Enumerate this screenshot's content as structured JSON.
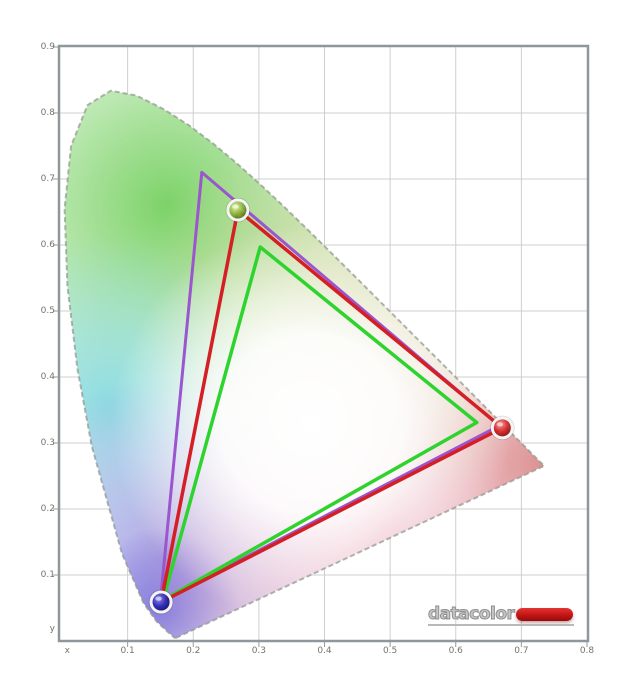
{
  "logo": {
    "text": "datacolor",
    "swoosh_color": "#c51414"
  },
  "axis": {
    "x_letter": "x",
    "y_letter": "y",
    "x_ticks": [
      {
        "label": "x",
        "value": 0.008
      },
      {
        "label": "0.1",
        "value": 0.1
      },
      {
        "label": "0.2",
        "value": 0.2
      },
      {
        "label": "0.3",
        "value": 0.3
      },
      {
        "label": "0.4",
        "value": 0.4
      },
      {
        "label": "0.5",
        "value": 0.5
      },
      {
        "label": "0.6",
        "value": 0.6
      },
      {
        "label": "0.7",
        "value": 0.7
      },
      {
        "label": "0.8",
        "value": 0.8
      }
    ],
    "y_ticks": [
      {
        "label": "0.9",
        "value": 0.9
      },
      {
        "label": "0.8",
        "value": 0.8
      },
      {
        "label": "0.7",
        "value": 0.7
      },
      {
        "label": "0.6",
        "value": 0.6
      },
      {
        "label": "0.5",
        "value": 0.5
      },
      {
        "label": "0.4",
        "value": 0.4
      },
      {
        "label": "0.3",
        "value": 0.3
      },
      {
        "label": "0.2",
        "value": 0.2
      },
      {
        "label": "0.1",
        "value": 0.1
      },
      {
        "label": "y",
        "value": 0.018
      }
    ]
  },
  "chart_data": {
    "type": "line",
    "subtype": "cie-1931-chromaticity-gamut",
    "xlabel": "x",
    "ylabel": "y",
    "xlim": [
      0,
      0.8
    ],
    "ylim": [
      0,
      0.9
    ],
    "grid": true,
    "grid_step": 0.1,
    "frame_color": "#8e989a",
    "grid_color": "#cfcfcf",
    "tick_color": "#999999",
    "label_color": "#75756c",
    "series": [
      {
        "name": "reference-gamut-wide",
        "color": "#9b55cf",
        "width": 3,
        "vertices": [
          [
            0.213,
            0.71
          ],
          [
            0.666,
            0.326
          ],
          [
            0.15,
            0.06
          ]
        ]
      },
      {
        "name": "reference-gamut-srgb",
        "color": "#2ed32e",
        "width": 3.5,
        "vertices": [
          [
            0.302,
            0.597
          ],
          [
            0.632,
            0.331
          ],
          [
            0.154,
            0.062
          ]
        ]
      },
      {
        "name": "measured-gamut",
        "color": "#d41f24",
        "width": 3.5,
        "vertices": [
          [
            0.268,
            0.653
          ],
          [
            0.671,
            0.323
          ],
          [
            0.151,
            0.059
          ]
        ]
      }
    ],
    "markers": [
      {
        "name": "green-primary",
        "x": 0.268,
        "y": 0.653,
        "r": 8.5,
        "stops": [
          "#eaf6b2",
          "#8aba3c",
          "#4f7019"
        ]
      },
      {
        "name": "red-primary",
        "x": 0.671,
        "y": 0.323,
        "r": 8.5,
        "stops": [
          "#f6a2a2",
          "#d42525",
          "#7c0e0e"
        ]
      },
      {
        "name": "blue-primary",
        "x": 0.151,
        "y": 0.059,
        "r": 8.5,
        "stops": [
          "#9090f2",
          "#2c2cba",
          "#0f0f5e"
        ]
      }
    ],
    "locus_edge_color": "#8d978d",
    "locus_shading": [
      {
        "id": "sh-green",
        "cx": 0.16,
        "cy": 0.66,
        "r": 250,
        "color": "#72cf5c",
        "opacity": 1
      },
      {
        "id": "sh-cyan",
        "cx": 0.07,
        "cy": 0.36,
        "r": 170,
        "color": "#7fd8df",
        "opacity": 0.95
      },
      {
        "id": "sh-lav",
        "cx": 0.16,
        "cy": 0.12,
        "r": 185,
        "color": "#9e97e2",
        "opacity": 0.95
      },
      {
        "id": "sh-blue",
        "cx": 0.15,
        "cy": 0.05,
        "r": 80,
        "color": "#6d63d8",
        "opacity": 0.85
      },
      {
        "id": "sh-pink",
        "cx": 0.5,
        "cy": 0.16,
        "r": 260,
        "color": "#e8a0b4",
        "opacity": 0.9
      },
      {
        "id": "sh-red",
        "cx": 0.73,
        "cy": 0.27,
        "r": 130,
        "color": "#d98585",
        "opacity": 0.95
      },
      {
        "id": "sh-khaki",
        "cx": 0.44,
        "cy": 0.5,
        "r": 210,
        "color": "#cccf8e",
        "opacity": 0.8
      },
      {
        "id": "sh-white",
        "cx": 0.38,
        "cy": 0.33,
        "r": 200,
        "color": "#ffffff",
        "opacity": 1,
        "core": 0.45
      }
    ],
    "spectral_locus": [
      [
        0.1741,
        0.005
      ],
      [
        0.1714,
        0.0051
      ],
      [
        0.1689,
        0.0069
      ],
      [
        0.1644,
        0.0109
      ],
      [
        0.1566,
        0.0177
      ],
      [
        0.144,
        0.0297
      ],
      [
        0.1241,
        0.0578
      ],
      [
        0.0913,
        0.1327
      ],
      [
        0.0454,
        0.295
      ],
      [
        0.0235,
        0.4127
      ],
      [
        0.0082,
        0.5384
      ],
      [
        0.0039,
        0.6548
      ],
      [
        0.0139,
        0.7502
      ],
      [
        0.0389,
        0.812
      ],
      [
        0.0743,
        0.8338
      ],
      [
        0.1142,
        0.8262
      ],
      [
        0.1547,
        0.8059
      ],
      [
        0.1929,
        0.7816
      ],
      [
        0.2296,
        0.7543
      ],
      [
        0.2658,
        0.7243
      ],
      [
        0.3016,
        0.6923
      ],
      [
        0.3373,
        0.6589
      ],
      [
        0.3731,
        0.6245
      ],
      [
        0.4087,
        0.5896
      ],
      [
        0.4441,
        0.5547
      ],
      [
        0.4788,
        0.5202
      ],
      [
        0.5125,
        0.4866
      ],
      [
        0.5448,
        0.4544
      ],
      [
        0.5752,
        0.4242
      ],
      [
        0.6029,
        0.3965
      ],
      [
        0.627,
        0.3725
      ],
      [
        0.6482,
        0.3514
      ],
      [
        0.6658,
        0.334
      ],
      [
        0.6801,
        0.3197
      ],
      [
        0.6915,
        0.3083
      ],
      [
        0.7079,
        0.292
      ],
      [
        0.719,
        0.2809
      ],
      [
        0.726,
        0.274
      ],
      [
        0.732,
        0.268
      ],
      [
        0.7347,
        0.2653
      ]
    ]
  }
}
